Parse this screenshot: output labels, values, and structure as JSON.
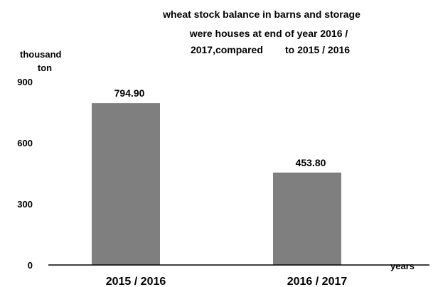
{
  "chart_data": {
    "type": "bar",
    "title_lines": [
      "wheat stock balance in barns and storage",
      "were houses at end of year 2016 /",
      "2017,compared        to 2015 / 2016"
    ],
    "ylabel_lines": [
      "thousand",
      "ton"
    ],
    "xlabel": "years",
    "categories": [
      "2015 / 2016",
      "2016 / 2017"
    ],
    "values": [
      794.9,
      453.8
    ],
    "data_labels": [
      "794.90",
      "453.80"
    ],
    "yticks": [
      0,
      300,
      600,
      900
    ],
    "ytick_labels": [
      "0",
      "300",
      "600",
      "900"
    ],
    "ylim": [
      0,
      900
    ],
    "grid": false,
    "legend": "none",
    "colors": {
      "bar": "#7f7f7f",
      "axis": "#000000",
      "text": "#000000"
    }
  }
}
